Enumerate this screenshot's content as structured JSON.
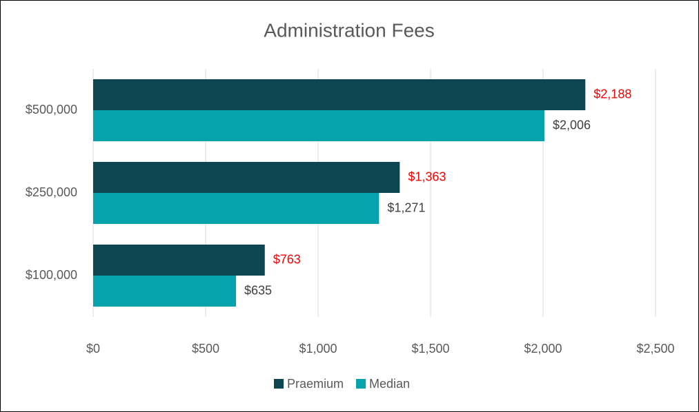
{
  "chart_data": {
    "type": "hbar",
    "title": "Administration Fees",
    "categories": [
      "$500,000",
      "$250,000",
      "$100,000"
    ],
    "series": [
      {
        "name": "Praemium",
        "color": "#0d4650",
        "label_color": "#ff0000",
        "values": [
          2188,
          1363,
          763
        ],
        "value_labels": [
          "$2,188",
          "$1,363",
          "$763"
        ]
      },
      {
        "name": "Median",
        "color": "#06a3ac",
        "label_color": "#404040",
        "values": [
          2006,
          1271,
          635
        ],
        "value_labels": [
          "$2,006",
          "$1,271",
          "$635"
        ]
      }
    ],
    "xlim": [
      0,
      2500
    ],
    "xticks": [
      {
        "value": 0,
        "label": "$0"
      },
      {
        "value": 500,
        "label": "$500"
      },
      {
        "value": 1000,
        "label": "$1,000"
      },
      {
        "value": 1500,
        "label": "$1,500"
      },
      {
        "value": 2000,
        "label": "$2,000"
      },
      {
        "value": 2500,
        "label": "$2,500"
      }
    ],
    "grid": true,
    "legend": "bottom"
  }
}
